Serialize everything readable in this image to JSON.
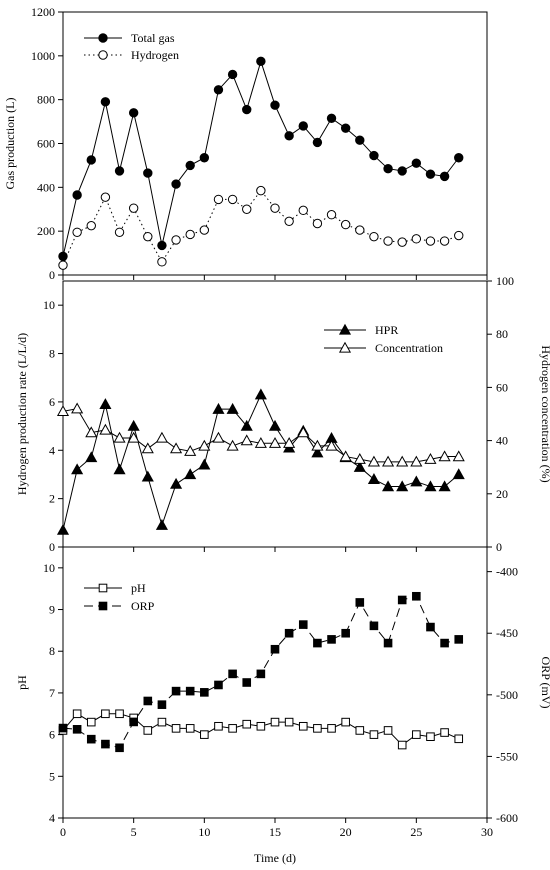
{
  "chart_data": {
    "type": "line",
    "x_label": "Time (d)",
    "x_ticks": [
      0,
      5,
      10,
      15,
      20,
      25,
      30
    ],
    "xlim": [
      0,
      30
    ],
    "grid": false,
    "panels": [
      {
        "id": "gas",
        "ylabel_left": "Gas production (L)",
        "ylim_left": [
          0,
          1200
        ],
        "yticks_left": [
          0,
          200,
          400,
          600,
          800,
          1000,
          1200
        ],
        "legend": "top-left",
        "series": [
          {
            "name": "Total gas",
            "axis": "left",
            "marker": "circle",
            "fill": "filled",
            "line": "solid",
            "x": [
              0,
              1,
              2,
              3,
              4,
              5,
              6,
              7,
              8,
              9,
              10,
              11,
              12,
              13,
              14,
              15,
              16,
              17,
              18,
              19,
              20,
              21,
              22,
              23,
              24,
              25,
              26,
              27,
              28
            ],
            "y": [
              85,
              365,
              525,
              790,
              475,
              740,
              465,
              135,
              415,
              500,
              535,
              845,
              915,
              755,
              975,
              775,
              635,
              680,
              605,
              715,
              670,
              615,
              545,
              485,
              475,
              510,
              460,
              450,
              535
            ]
          },
          {
            "name": "Hydrogen",
            "axis": "left",
            "marker": "circle",
            "fill": "open",
            "line": "dotted",
            "x": [
              0,
              1,
              2,
              3,
              4,
              5,
              6,
              7,
              8,
              9,
              10,
              11,
              12,
              13,
              14,
              15,
              16,
              17,
              18,
              19,
              20,
              21,
              22,
              23,
              24,
              25,
              26,
              27,
              28
            ],
            "y": [
              45,
              195,
              225,
              355,
              195,
              305,
              175,
              60,
              160,
              185,
              205,
              345,
              345,
              300,
              385,
              305,
              245,
              295,
              235,
              275,
              230,
              205,
              175,
              155,
              150,
              165,
              155,
              155,
              180
            ]
          }
        ]
      },
      {
        "id": "hydrogen",
        "ylabel_left": "Hydrogen production rate (L/L/d)",
        "ylabel_right": "Hydrogen concentration (%)",
        "ylim_left": [
          0,
          11
        ],
        "yticks_left": [
          0,
          2,
          4,
          6,
          8,
          10
        ],
        "ylim_right": [
          0,
          100
        ],
        "yticks_right": [
          0,
          20,
          40,
          60,
          80,
          100
        ],
        "legend": "top-right",
        "series": [
          {
            "name": "HPR",
            "axis": "left",
            "marker": "triangle",
            "fill": "filled",
            "line": "solid",
            "x": [
              0,
              1,
              2,
              3,
              4,
              5,
              6,
              7,
              8,
              9,
              10,
              11,
              12,
              13,
              14,
              15,
              16,
              17,
              18,
              19,
              20,
              21,
              22,
              23,
              24,
              25,
              26,
              27,
              28
            ],
            "y": [
              0.7,
              3.2,
              3.7,
              5.9,
              3.2,
              5.0,
              2.9,
              0.9,
              2.6,
              3.0,
              3.4,
              5.7,
              5.7,
              5.0,
              6.3,
              5.0,
              4.1,
              4.8,
              3.9,
              4.5,
              3.7,
              3.3,
              2.8,
              2.5,
              2.5,
              2.7,
              2.5,
              2.5,
              3.0
            ]
          },
          {
            "name": "Concentration",
            "axis": "right",
            "marker": "triangle",
            "fill": "open",
            "line": "solid",
            "x": [
              0,
              1,
              2,
              3,
              4,
              5,
              6,
              7,
              8,
              9,
              10,
              11,
              12,
              13,
              14,
              15,
              16,
              17,
              18,
              19,
              20,
              21,
              22,
              23,
              24,
              25,
              26,
              27,
              28
            ],
            "y": [
              51,
              52,
              43,
              44,
              41,
              41,
              37,
              41,
              37,
              36,
              38,
              41,
              38,
              40,
              39,
              39,
              39,
              43,
              38,
              38,
              34,
              33,
              32,
              32,
              32,
              32,
              33,
              34,
              34
            ]
          }
        ]
      },
      {
        "id": "ph_orp",
        "ylabel_left": "pH",
        "ylabel_right": "ORP (mV)",
        "ylim_left": [
          4,
          10.5
        ],
        "yticks_left": [
          4,
          5,
          6,
          7,
          8,
          9,
          10
        ],
        "ylim_right": [
          -600,
          -380
        ],
        "yticks_right": [
          -600,
          -550,
          -500,
          -450,
          -400
        ],
        "legend": "top-left",
        "series": [
          {
            "name": "pH",
            "axis": "left",
            "marker": "square",
            "fill": "open",
            "line": "solid",
            "x": [
              0,
              1,
              2,
              3,
              4,
              5,
              6,
              7,
              8,
              9,
              10,
              11,
              12,
              13,
              14,
              15,
              16,
              17,
              18,
              19,
              20,
              21,
              22,
              23,
              24,
              25,
              26,
              27,
              28
            ],
            "y": [
              6.1,
              6.5,
              6.3,
              6.5,
              6.5,
              6.4,
              6.1,
              6.3,
              6.15,
              6.15,
              6.0,
              6.2,
              6.15,
              6.25,
              6.2,
              6.3,
              6.3,
              6.2,
              6.15,
              6.15,
              6.3,
              6.1,
              6.0,
              6.1,
              5.75,
              6.0,
              5.95,
              6.05,
              5.9
            ]
          },
          {
            "name": "ORP",
            "axis": "right",
            "marker": "square",
            "fill": "filled",
            "line": "dashed",
            "x": [
              0,
              1,
              2,
              3,
              4,
              5,
              6,
              7,
              8,
              9,
              10,
              11,
              12,
              13,
              14,
              15,
              16,
              17,
              18,
              19,
              20,
              21,
              22,
              23,
              24,
              25,
              26,
              27,
              28
            ],
            "y": [
              -527,
              -528,
              -536,
              -540,
              -543,
              -522,
              -505,
              -508,
              -497,
              -497,
              -498,
              -492,
              -483,
              -490,
              -483,
              -463,
              -450,
              -443,
              -458,
              -455,
              -450,
              -425,
              -444,
              -458,
              -423,
              -420,
              -445,
              -458,
              -455
            ]
          }
        ]
      }
    ]
  }
}
